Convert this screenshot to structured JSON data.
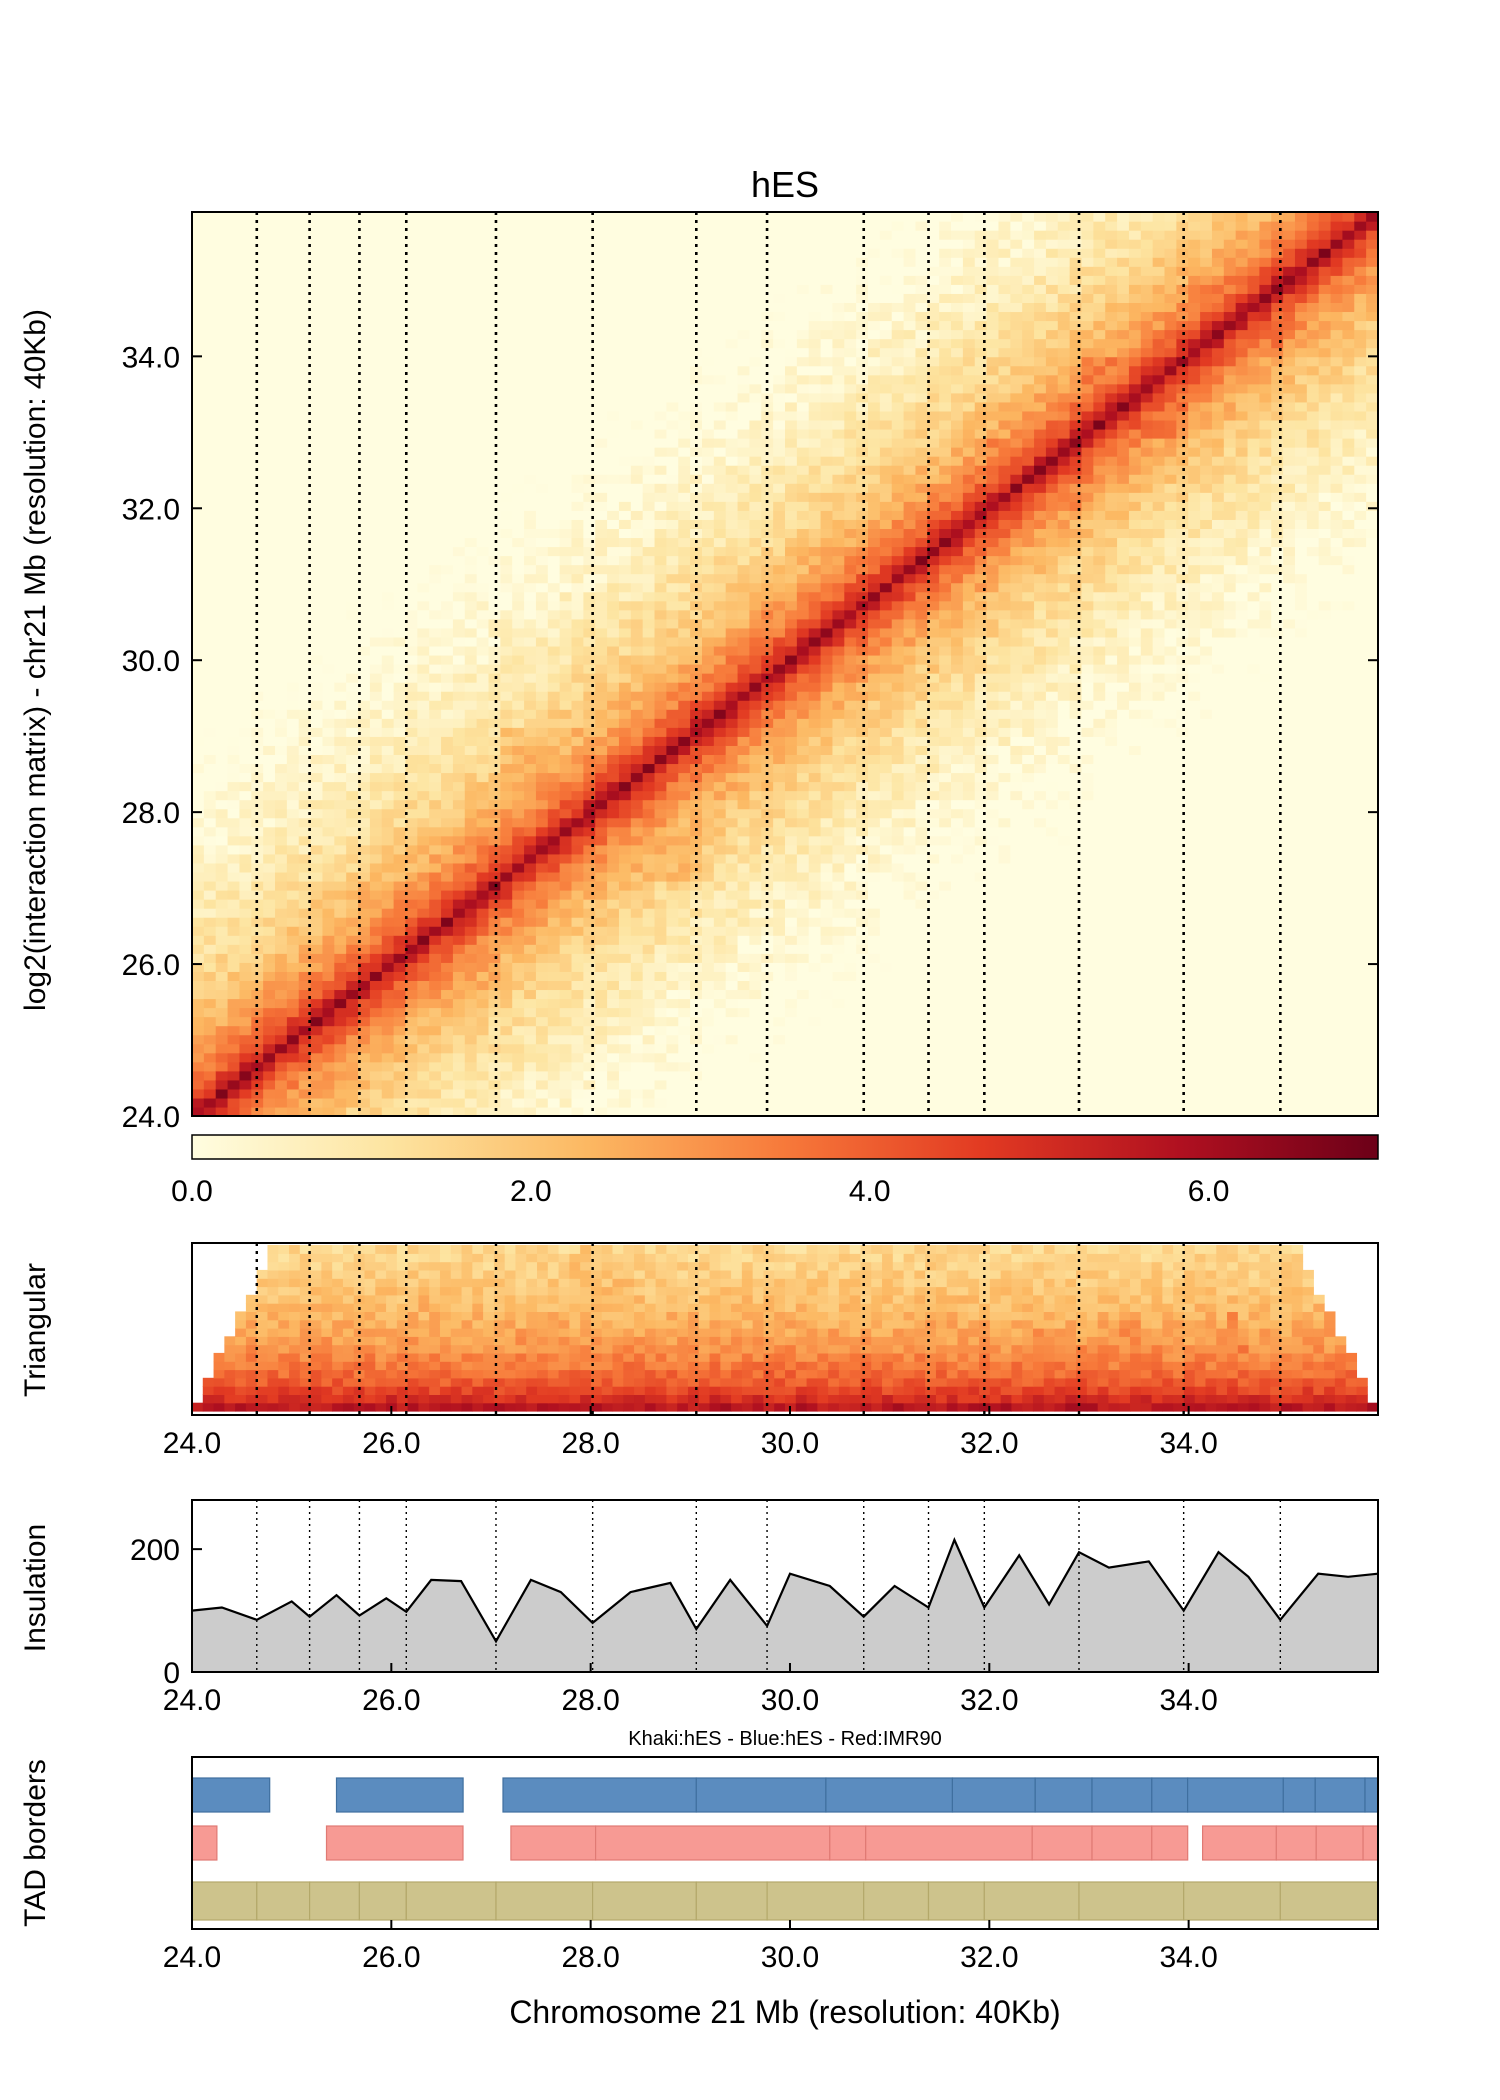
{
  "colors": {
    "scale": [
      "#fffde0",
      "#fde4a0",
      "#fcb862",
      "#f7793a",
      "#e23a22",
      "#b01020",
      "#6c0018"
    ],
    "insulation_fill": "#cccccc",
    "blue": "#5b8cbf",
    "red": "#f79a94",
    "khaki": "#cdc38c"
  },
  "chart_data": [
    {
      "type": "heatmap",
      "title": "hES",
      "ylabel": "log2(interaction matrix) - chr21 Mb (resolution: 40Kb)",
      "xlim": [
        24.0,
        35.9
      ],
      "ylim": [
        24.0,
        35.9
      ],
      "yticks": [
        "24.0",
        "26.0",
        "28.0",
        "30.0",
        "32.0",
        "34.0"
      ],
      "borders": [
        24.65,
        25.18,
        25.68,
        26.15,
        27.05,
        28.02,
        29.06,
        29.77,
        30.74,
        31.39,
        31.95,
        32.9,
        33.95,
        34.92
      ],
      "tads": [
        [
          24.0,
          24.65,
          3.3
        ],
        [
          24.65,
          25.68,
          3.1
        ],
        [
          25.68,
          27.05,
          2.9
        ],
        [
          27.05,
          29.06,
          2.7
        ],
        [
          29.06,
          29.77,
          3.6
        ],
        [
          29.77,
          30.74,
          3.4
        ],
        [
          30.74,
          31.39,
          3.4
        ],
        [
          31.39,
          31.95,
          3.9
        ],
        [
          31.95,
          32.9,
          3.5
        ],
        [
          32.9,
          33.95,
          3.6
        ],
        [
          33.95,
          34.92,
          3.7
        ],
        [
          34.92,
          35.9,
          3.3
        ]
      ],
      "colorbar": {
        "range": [
          0.0,
          7.0
        ],
        "ticks": [
          "0.0",
          "2.0",
          "4.0",
          "6.0"
        ]
      }
    },
    {
      "type": "heatmap",
      "ylabel": "Triangular",
      "xlim": [
        24.0,
        35.9
      ],
      "xticks": [
        "24.0",
        "26.0",
        "28.0",
        "30.0",
        "32.0",
        "34.0"
      ]
    },
    {
      "type": "area",
      "ylabel": "Insulation",
      "xlim": [
        24.0,
        35.9
      ],
      "ylim": [
        0,
        280
      ],
      "yticks": [
        "0",
        "200"
      ],
      "xticks": [
        "24.0",
        "26.0",
        "28.0",
        "30.0",
        "32.0",
        "34.0"
      ],
      "x": [
        24.0,
        24.3,
        24.65,
        25.0,
        25.18,
        25.45,
        25.68,
        25.95,
        26.15,
        26.4,
        26.7,
        27.05,
        27.4,
        27.7,
        28.02,
        28.4,
        28.8,
        29.06,
        29.4,
        29.77,
        30.0,
        30.4,
        30.74,
        31.05,
        31.39,
        31.65,
        31.95,
        32.3,
        32.6,
        32.9,
        33.2,
        33.6,
        33.95,
        34.3,
        34.6,
        34.92,
        35.3,
        35.6,
        35.9
      ],
      "y": [
        100,
        105,
        85,
        115,
        90,
        125,
        92,
        120,
        98,
        150,
        148,
        50,
        150,
        130,
        80,
        130,
        145,
        70,
        150,
        75,
        160,
        140,
        90,
        140,
        105,
        215,
        105,
        190,
        110,
        195,
        170,
        180,
        100,
        195,
        155,
        85,
        160,
        155,
        160
      ]
    },
    {
      "type": "bar",
      "ylabel": "TAD borders",
      "legend": "Khaki:hES - Blue:hES - Red:IMR90",
      "xlabel": "Chromosome 21 Mb (resolution: 40Kb)",
      "xlim": [
        24.0,
        35.9
      ],
      "xticks": [
        "24.0",
        "26.0",
        "28.0",
        "30.0",
        "32.0",
        "34.0"
      ],
      "series": [
        {
          "name": "Blue:hES",
          "intervals": [
            [
              24.0,
              24.78
            ],
            [
              25.45,
              26.72
            ],
            [
              27.12,
              29.06
            ],
            [
              29.06,
              30.36
            ],
            [
              30.36,
              31.63
            ],
            [
              31.63,
              32.46
            ],
            [
              32.46,
              33.03
            ],
            [
              33.03,
              33.63
            ],
            [
              33.63,
              33.99
            ],
            [
              33.99,
              34.95
            ],
            [
              34.95,
              35.27
            ],
            [
              35.27,
              35.77
            ],
            [
              35.77,
              35.9
            ]
          ]
        },
        {
          "name": "Red:IMR90",
          "intervals": [
            [
              24.0,
              24.25
            ],
            [
              25.35,
              26.72
            ],
            [
              27.2,
              28.05
            ],
            [
              28.05,
              30.4
            ],
            [
              30.4,
              30.76
            ],
            [
              30.76,
              32.43
            ],
            [
              32.43,
              33.03
            ],
            [
              33.03,
              33.63
            ],
            [
              33.63,
              33.99
            ],
            [
              34.14,
              34.88
            ],
            [
              34.88,
              35.28
            ],
            [
              35.28,
              35.75
            ],
            [
              35.75,
              35.9
            ]
          ]
        },
        {
          "name": "Khaki:hES",
          "intervals": [
            [
              24.0,
              24.65
            ],
            [
              24.65,
              25.18
            ],
            [
              25.18,
              25.68
            ],
            [
              25.68,
              26.15
            ],
            [
              26.15,
              27.05
            ],
            [
              27.05,
              28.02
            ],
            [
              28.02,
              29.06
            ],
            [
              29.06,
              29.77
            ],
            [
              29.77,
              30.74
            ],
            [
              30.74,
              31.39
            ],
            [
              31.39,
              31.95
            ],
            [
              31.95,
              32.9
            ],
            [
              32.9,
              33.95
            ],
            [
              33.95,
              34.92
            ],
            [
              34.92,
              35.9
            ]
          ]
        }
      ]
    }
  ]
}
